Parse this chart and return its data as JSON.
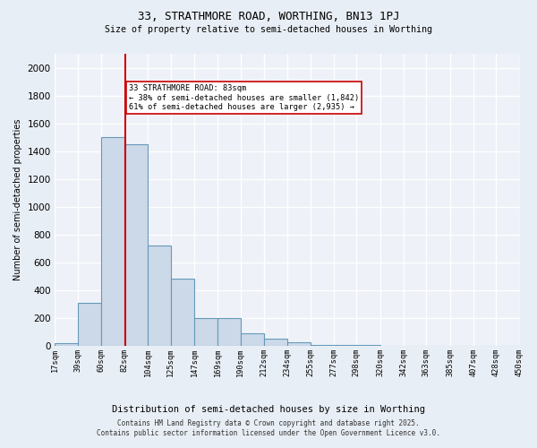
{
  "title1": "33, STRATHMORE ROAD, WORTHING, BN13 1PJ",
  "title2": "Size of property relative to semi-detached houses in Worthing",
  "xlabel": "Distribution of semi-detached houses by size in Worthing",
  "ylabel": "Number of semi-detached properties",
  "bin_edges": [
    17,
    39,
    60,
    82,
    104,
    125,
    147,
    169,
    190,
    212,
    234,
    255,
    277,
    298,
    320,
    342,
    363,
    385,
    407,
    428,
    450
  ],
  "bar_heights": [
    20,
    310,
    1500,
    1450,
    720,
    480,
    195,
    195,
    90,
    50,
    25,
    5,
    5,
    2,
    0,
    0,
    0,
    0,
    0,
    0
  ],
  "bar_color": "#ccd9e8",
  "bar_edge_color": "#6699bb",
  "property_size": 83,
  "red_line_color": "#cc0000",
  "annotation_text": "33 STRATHMORE ROAD: 83sqm\n← 38% of semi-detached houses are smaller (1,842)\n61% of semi-detached houses are larger (2,935) →",
  "annotation_box_color": "white",
  "annotation_box_edge": "#cc0000",
  "ylim": [
    0,
    2100
  ],
  "yticks": [
    0,
    200,
    400,
    600,
    800,
    1000,
    1200,
    1400,
    1600,
    1800,
    2000
  ],
  "footer_line1": "Contains HM Land Registry data © Crown copyright and database right 2025.",
  "footer_line2": "Contains public sector information licensed under the Open Government Licence v3.0.",
  "bg_color": "#e8eef5",
  "plot_bg_color": "#eef2f8",
  "grid_color": "#d0d8e8"
}
